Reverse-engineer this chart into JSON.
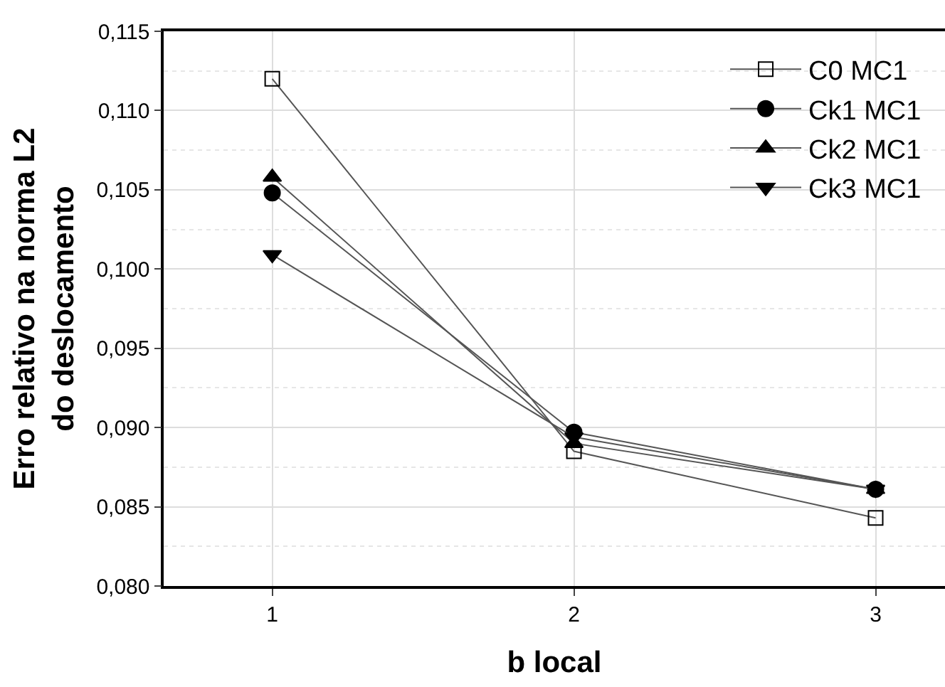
{
  "chart_data": {
    "type": "line",
    "xlabel": "b local",
    "ylabel": "Erro relativo na norma L2\ndo deslocamento",
    "x": [
      1,
      2,
      3
    ],
    "xlim": [
      0.64,
      3.23
    ],
    "xticks": [
      1,
      2,
      3
    ],
    "ylim": [
      0.08,
      0.115
    ],
    "yticks": [
      {
        "value": 0.08,
        "label": "0,080"
      },
      {
        "value": 0.085,
        "label": "0,085"
      },
      {
        "value": 0.09,
        "label": "0,090"
      },
      {
        "value": 0.095,
        "label": "0,095"
      },
      {
        "value": 0.1,
        "label": "0,100"
      },
      {
        "value": 0.105,
        "label": "0,105"
      },
      {
        "value": 0.11,
        "label": "0,110"
      },
      {
        "value": 0.115,
        "label": "0,115"
      }
    ],
    "grid": true,
    "legend": "top right",
    "line_style": "solid",
    "series": [
      {
        "name": "C0 MC1",
        "color": "#000000",
        "marker": "square-open",
        "values": [
          0.112,
          0.0885,
          0.0843
        ]
      },
      {
        "name": "Ck1 MC1",
        "color": "#000000",
        "marker": "circle",
        "values": [
          0.1048,
          0.0897,
          0.0861
        ]
      },
      {
        "name": "Ck2 MC1",
        "color": "#000000",
        "marker": "triangle",
        "values": [
          0.1058,
          0.089,
          0.0861
        ]
      },
      {
        "name": "Ck3 MC1",
        "color": "#000000",
        "marker": "triangle-down",
        "values": [
          0.1009,
          0.0894,
          0.0861
        ]
      }
    ]
  }
}
